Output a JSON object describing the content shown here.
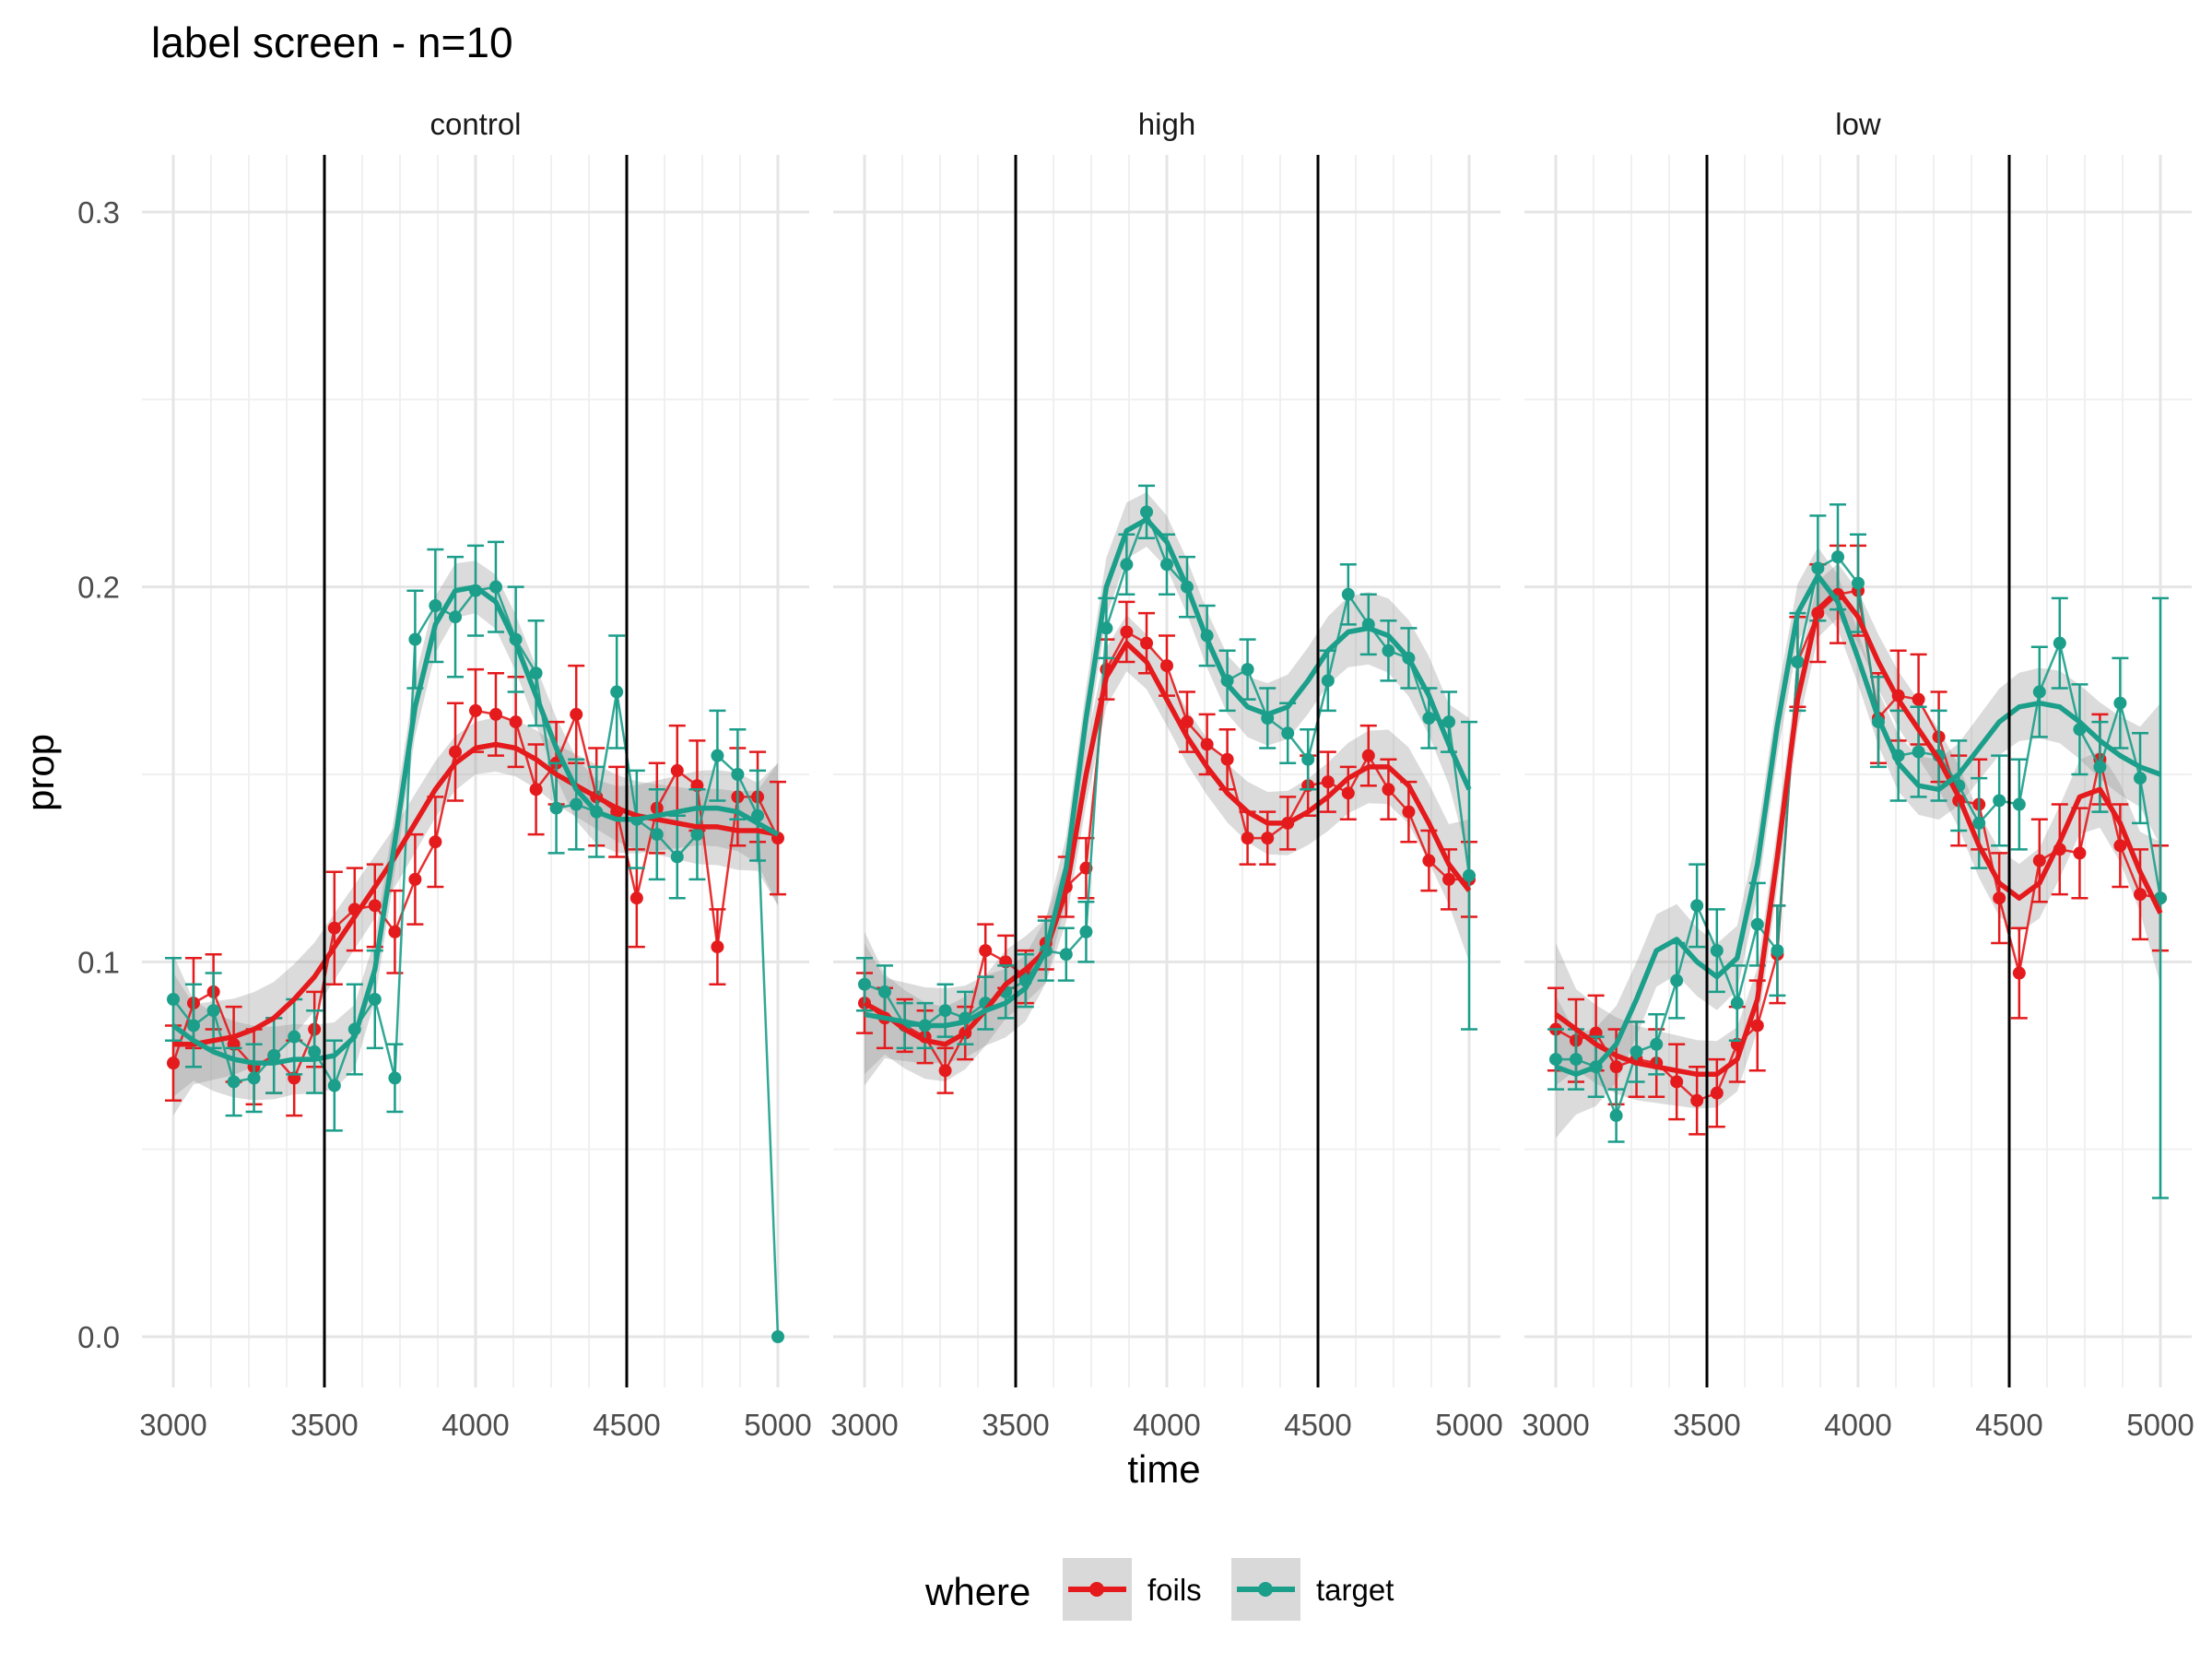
{
  "chart_data": {
    "type": "line",
    "title": "label screen - n=10",
    "xlabel": "time",
    "ylabel": "prop",
    "xlim": [
      3000,
      5000
    ],
    "ylim": [
      0.0,
      0.3
    ],
    "x_ticks": [
      3000,
      3500,
      4000,
      4500,
      5000
    ],
    "y_ticks": [
      0.0,
      0.1,
      0.2,
      0.3
    ],
    "y_tick_labels": [
      "0.0",
      "0.1",
      "0.2",
      "0.3"
    ],
    "grid": true,
    "reference_lines_x": [
      3500,
      4500
    ],
    "legend": {
      "title": "where",
      "placement": "bottom",
      "entries": [
        "foils",
        "target"
      ]
    },
    "colors": {
      "foils": "#e41a1c",
      "target": "#1b9e8a"
    },
    "x": [
      3000,
      3067,
      3133,
      3200,
      3267,
      3333,
      3400,
      3467,
      3533,
      3600,
      3667,
      3733,
      3800,
      3867,
      3933,
      4000,
      4067,
      4133,
      4200,
      4267,
      4333,
      4400,
      4467,
      4533,
      4600,
      4667,
      4733,
      4800,
      4867,
      4933,
      5000
    ],
    "panels": [
      {
        "facet": "control",
        "series": [
          {
            "name": "foils",
            "values": [
              0.073,
              0.089,
              0.092,
              0.078,
              0.072,
              0.075,
              0.069,
              0.082,
              0.109,
              0.114,
              0.115,
              0.108,
              0.122,
              0.132,
              0.156,
              0.167,
              0.166,
              0.164,
              0.146,
              0.153,
              0.166,
              0.144,
              0.14,
              0.117,
              0.141,
              0.151,
              0.147,
              0.104,
              0.144,
              0.144,
              0.133
            ],
            "smooth": [
              0.078,
              0.078,
              0.079,
              0.08,
              0.082,
              0.085,
              0.09,
              0.096,
              0.104,
              0.112,
              0.12,
              0.128,
              0.137,
              0.146,
              0.153,
              0.157,
              0.158,
              0.157,
              0.154,
              0.15,
              0.147,
              0.144,
              0.141,
              0.139,
              0.138,
              0.137,
              0.136,
              0.136,
              0.135,
              0.135,
              0.134
            ],
            "error": [
              0.01,
              0.012,
              0.01,
              0.01,
              0.01,
              0.01,
              0.01,
              0.01,
              0.015,
              0.011,
              0.011,
              0.011,
              0.012,
              0.012,
              0.013,
              0.011,
              0.011,
              0.012,
              0.012,
              0.011,
              0.013,
              0.013,
              0.012,
              0.013,
              0.012,
              0.012,
              0.012,
              0.01,
              0.013,
              0.012,
              0.015
            ]
          },
          {
            "name": "target",
            "values": [
              0.09,
              0.083,
              0.087,
              0.068,
              0.069,
              0.075,
              0.08,
              0.076,
              0.067,
              0.082,
              0.09,
              0.069,
              0.186,
              0.195,
              0.192,
              0.199,
              0.2,
              0.186,
              0.177,
              0.141,
              0.142,
              0.14,
              0.172,
              0.138,
              0.134,
              0.128,
              0.134,
              0.155,
              0.15,
              0.139,
              0.0
            ],
            "smooth": [
              0.083,
              0.079,
              0.076,
              0.074,
              0.073,
              0.073,
              0.074,
              0.074,
              0.075,
              0.08,
              0.098,
              0.132,
              0.168,
              0.19,
              0.199,
              0.2,
              0.196,
              0.185,
              0.171,
              0.157,
              0.146,
              0.14,
              0.138,
              0.138,
              0.139,
              0.14,
              0.141,
              0.141,
              0.14,
              0.137,
              0.134
            ],
            "error": [
              0.011,
              0.011,
              0.01,
              0.009,
              0.009,
              0.01,
              0.01,
              0.011,
              0.012,
              0.012,
              0.013,
              0.009,
              0.013,
              0.015,
              0.016,
              0.012,
              0.012,
              0.014,
              0.014,
              0.012,
              0.012,
              0.012,
              0.015,
              0.013,
              0.012,
              0.011,
              0.012,
              0.012,
              0.012,
              0.012,
              0.0
            ]
          }
        ]
      },
      {
        "facet": "high",
        "series": [
          {
            "name": "foils",
            "values": [
              0.089,
              0.085,
              0.083,
              0.08,
              0.071,
              0.081,
              0.103,
              0.1,
              0.096,
              0.105,
              0.12,
              0.125,
              0.178,
              0.188,
              0.185,
              0.179,
              0.164,
              0.158,
              0.154,
              0.133,
              0.133,
              0.137,
              0.147,
              0.148,
              0.145,
              0.155,
              0.146,
              0.14,
              0.127,
              0.122,
              0.122
            ],
            "smooth": [
              0.089,
              0.086,
              0.082,
              0.079,
              0.078,
              0.081,
              0.087,
              0.094,
              0.098,
              0.103,
              0.119,
              0.15,
              0.176,
              0.185,
              0.18,
              0.17,
              0.16,
              0.152,
              0.145,
              0.14,
              0.137,
              0.137,
              0.14,
              0.144,
              0.149,
              0.152,
              0.152,
              0.147,
              0.137,
              0.126,
              0.119
            ],
            "error": [
              0.008,
              0.008,
              0.007,
              0.007,
              0.006,
              0.007,
              0.007,
              0.007,
              0.007,
              0.007,
              0.008,
              0.008,
              0.008,
              0.008,
              0.008,
              0.008,
              0.008,
              0.008,
              0.008,
              0.007,
              0.007,
              0.007,
              0.008,
              0.008,
              0.007,
              0.008,
              0.008,
              0.008,
              0.008,
              0.008,
              0.01
            ]
          },
          {
            "name": "target",
            "values": [
              0.094,
              0.092,
              0.083,
              0.083,
              0.087,
              0.085,
              0.089,
              0.092,
              0.095,
              0.103,
              0.102,
              0.108,
              0.189,
              0.206,
              0.22,
              0.206,
              0.2,
              0.187,
              0.175,
              0.178,
              0.165,
              0.161,
              0.154,
              0.175,
              0.198,
              0.19,
              0.183,
              0.181,
              0.165,
              0.164,
              0.123
            ],
            "smooth": [
              0.086,
              0.085,
              0.084,
              0.083,
              0.083,
              0.084,
              0.087,
              0.089,
              0.093,
              0.103,
              0.125,
              0.165,
              0.2,
              0.215,
              0.218,
              0.212,
              0.2,
              0.186,
              0.174,
              0.168,
              0.166,
              0.168,
              0.175,
              0.183,
              0.188,
              0.189,
              0.187,
              0.181,
              0.171,
              0.158,
              0.146
            ],
            "error": [
              0.007,
              0.007,
              0.006,
              0.006,
              0.007,
              0.007,
              0.007,
              0.007,
              0.007,
              0.008,
              0.007,
              0.008,
              0.008,
              0.008,
              0.007,
              0.008,
              0.008,
              0.008,
              0.008,
              0.008,
              0.008,
              0.008,
              0.008,
              0.008,
              0.008,
              0.008,
              0.008,
              0.008,
              0.008,
              0.008,
              0.041
            ]
          }
        ]
      },
      {
        "facet": "low",
        "series": [
          {
            "name": "foils",
            "values": [
              0.082,
              0.079,
              0.081,
              0.072,
              0.074,
              0.073,
              0.068,
              0.063,
              0.065,
              0.078,
              0.083,
              0.102,
              0.18,
              0.193,
              0.198,
              0.199,
              0.165,
              0.171,
              0.17,
              0.16,
              0.143,
              0.142,
              0.117,
              0.097,
              0.127,
              0.13,
              0.129,
              0.154,
              0.131,
              0.118,
              0.117
            ],
            "smooth": [
              0.086,
              0.082,
              0.078,
              0.075,
              0.073,
              0.072,
              0.071,
              0.07,
              0.07,
              0.074,
              0.09,
              0.128,
              0.17,
              0.194,
              0.199,
              0.192,
              0.18,
              0.17,
              0.162,
              0.154,
              0.144,
              0.131,
              0.121,
              0.117,
              0.121,
              0.132,
              0.144,
              0.146,
              0.137,
              0.124,
              0.113
            ],
            "error": [
              0.011,
              0.011,
              0.01,
              0.01,
              0.01,
              0.009,
              0.01,
              0.009,
              0.009,
              0.01,
              0.012,
              0.013,
              0.012,
              0.013,
              0.013,
              0.012,
              0.012,
              0.012,
              0.012,
              0.012,
              0.012,
              0.012,
              0.012,
              0.012,
              0.011,
              0.012,
              0.012,
              0.012,
              0.011,
              0.012,
              0.014
            ]
          },
          {
            "name": "target",
            "values": [
              0.074,
              0.074,
              0.072,
              0.059,
              0.076,
              0.078,
              0.095,
              0.115,
              0.103,
              0.089,
              0.11,
              0.103,
              0.18,
              0.205,
              0.208,
              0.201,
              0.164,
              0.155,
              0.156,
              0.155,
              0.147,
              0.137,
              0.143,
              0.142,
              0.172,
              0.185,
              0.162,
              0.152,
              0.169,
              0.149,
              0.117
            ],
            "smooth": [
              0.072,
              0.07,
              0.072,
              0.078,
              0.09,
              0.103,
              0.106,
              0.1,
              0.096,
              0.101,
              0.126,
              0.163,
              0.193,
              0.203,
              0.196,
              0.181,
              0.165,
              0.153,
              0.147,
              0.146,
              0.15,
              0.157,
              0.164,
              0.168,
              0.169,
              0.168,
              0.164,
              0.159,
              0.155,
              0.152,
              0.15
            ],
            "error": [
              0.008,
              0.008,
              0.008,
              0.007,
              0.008,
              0.008,
              0.01,
              0.011,
              0.011,
              0.01,
              0.011,
              0.012,
              0.013,
              0.014,
              0.014,
              0.013,
              0.012,
              0.012,
              0.012,
              0.012,
              0.012,
              0.012,
              0.012,
              0.012,
              0.012,
              0.012,
              0.012,
              0.012,
              0.012,
              0.012,
              0.08
            ]
          }
        ]
      }
    ]
  }
}
